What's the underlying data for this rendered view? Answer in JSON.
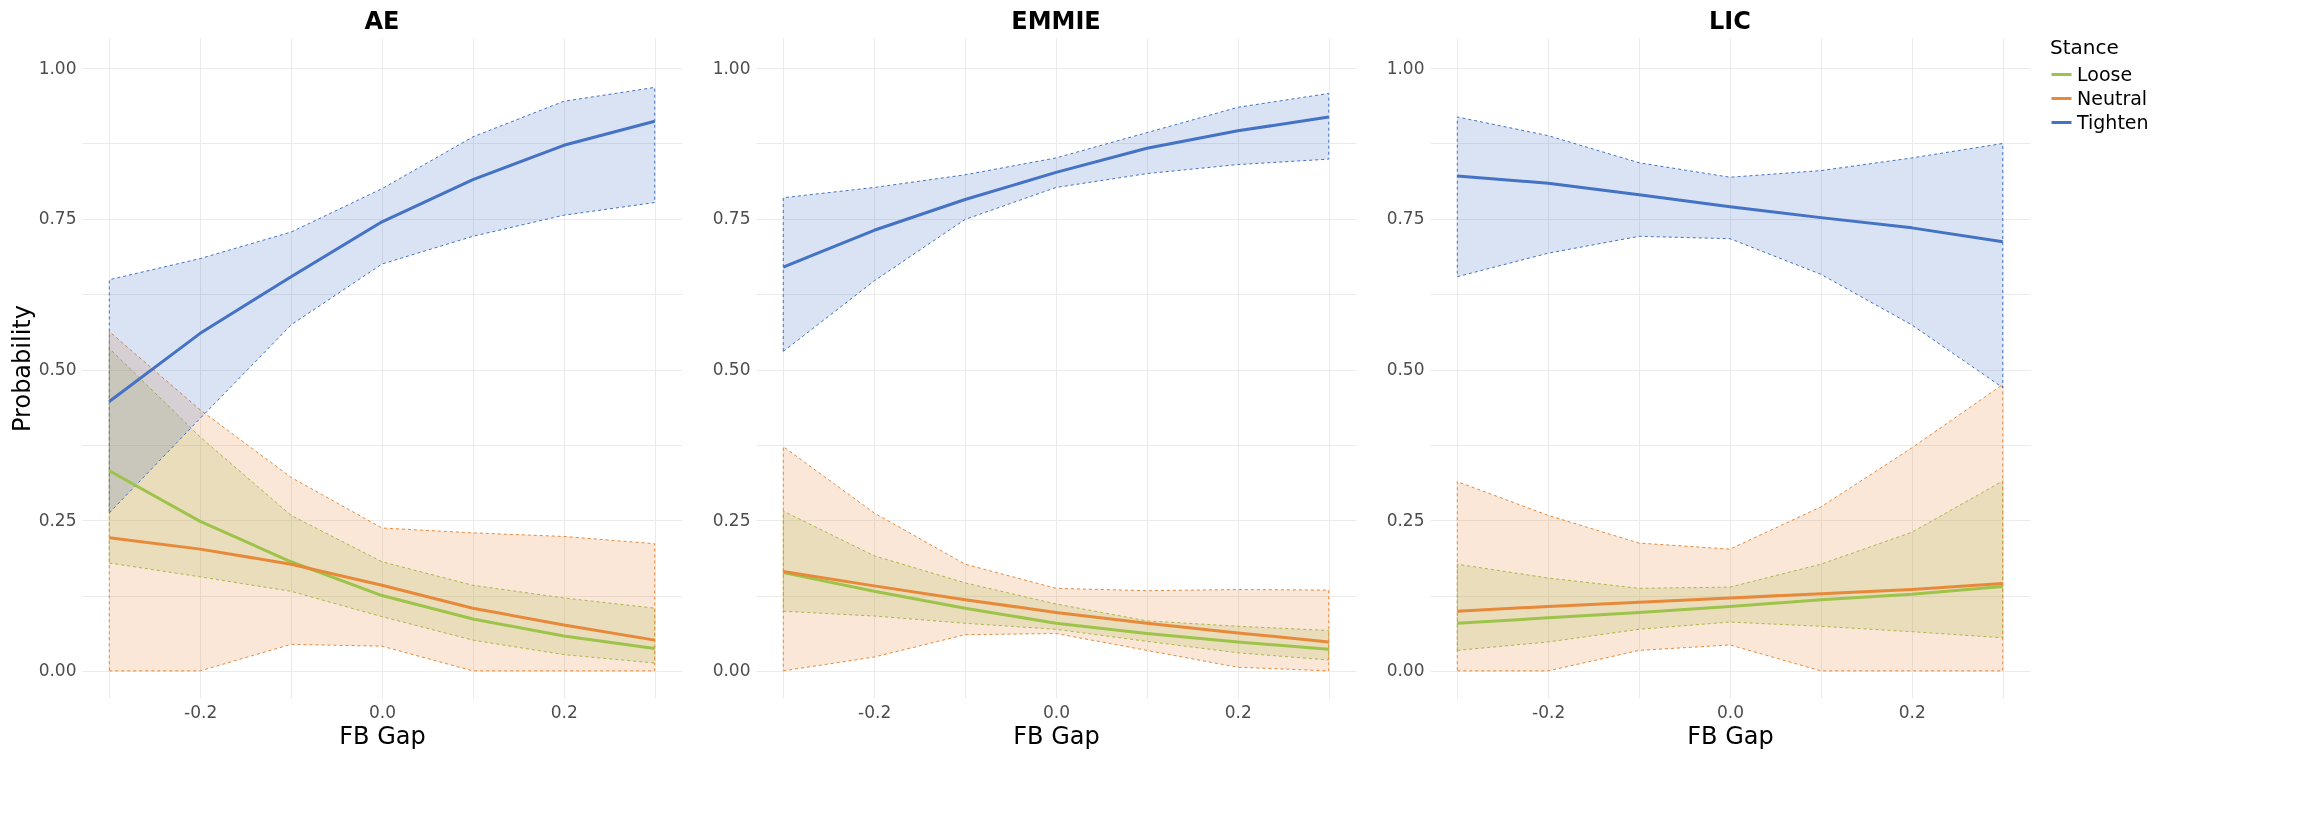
{
  "chart_data": [
    {
      "type": "line",
      "title": "AE",
      "xlabel": "FB Gap",
      "ylabel": "Probability",
      "legend": "right",
      "grid": true,
      "line_style": "solid",
      "x": [
        -0.3,
        -0.2,
        -0.1,
        0,
        0.1,
        0.2,
        0.3
      ],
      "xlim": [
        -0.33,
        0.33
      ],
      "xticks": [
        {
          "value": -0.3,
          "label": null
        },
        {
          "value": -0.2,
          "label": "-0.2"
        },
        {
          "value": -0.1,
          "label": null
        },
        {
          "value": 0,
          "label": "0.0"
        },
        {
          "value": 0.1,
          "label": null
        },
        {
          "value": 0.2,
          "label": "0.2"
        },
        {
          "value": 0.3,
          "label": null
        }
      ],
      "ylim": [
        -0.045,
        1.05
      ],
      "yticks": [
        {
          "value": 0,
          "label": "0.00"
        },
        {
          "value": 0.125,
          "label": null
        },
        {
          "value": 0.25,
          "label": "0.25"
        },
        {
          "value": 0.375,
          "label": null
        },
        {
          "value": 0.5,
          "label": "0.50"
        },
        {
          "value": 0.625,
          "label": null
        },
        {
          "value": 0.75,
          "label": "0.75"
        },
        {
          "value": 0.875,
          "label": null
        },
        {
          "value": 1,
          "label": "1.00"
        }
      ],
      "series": [
        {
          "name": "Loose",
          "color": "#9dc34a",
          "values": [
            0.332,
            0.248,
            0.181,
            0.125,
            0.086,
            0.058,
            0.037
          ],
          "lower": [
            0.179,
            0.156,
            0.132,
            0.09,
            0.051,
            0.027,
            0.013
          ],
          "upper": [
            0.535,
            0.388,
            0.258,
            0.181,
            0.142,
            0.121,
            0.104
          ]
        },
        {
          "name": "Neutral",
          "color": "#e8893a",
          "values": [
            0.221,
            0.202,
            0.177,
            0.142,
            0.104,
            0.076,
            0.051
          ],
          "lower": [
            0,
            0,
            0.044,
            0.041,
            0,
            0,
            0
          ],
          "upper": [
            0.563,
            0.433,
            0.321,
            0.237,
            0.229,
            0.223,
            0.211
          ]
        },
        {
          "name": "Tighten",
          "color": "#4472c4",
          "values": [
            0.447,
            0.56,
            0.654,
            0.745,
            0.815,
            0.872,
            0.912
          ],
          "lower": [
            0.262,
            0.419,
            0.574,
            0.675,
            0.721,
            0.756,
            0.777
          ],
          "upper": [
            0.649,
            0.684,
            0.728,
            0.8,
            0.886,
            0.945,
            0.968
          ]
        }
      ]
    },
    {
      "type": "line",
      "title": "EMMIE",
      "xlabel": "FB Gap",
      "legend": "right",
      "grid": true,
      "line_style": "solid",
      "x": [
        -0.3,
        -0.2,
        -0.1,
        0,
        0.1,
        0.2,
        0.3
      ],
      "xlim": [
        -0.33,
        0.33
      ],
      "xticks": [
        {
          "value": -0.3,
          "label": null
        },
        {
          "value": -0.2,
          "label": "-0.2"
        },
        {
          "value": -0.1,
          "label": null
        },
        {
          "value": 0,
          "label": "0.0"
        },
        {
          "value": 0.1,
          "label": null
        },
        {
          "value": 0.2,
          "label": "0.2"
        },
        {
          "value": 0.3,
          "label": null
        }
      ],
      "ylim": [
        -0.045,
        1.05
      ],
      "yticks": [
        {
          "value": 0,
          "label": "0.00"
        },
        {
          "value": 0.125,
          "label": null
        },
        {
          "value": 0.25,
          "label": "0.25"
        },
        {
          "value": 0.375,
          "label": null
        },
        {
          "value": 0.5,
          "label": "0.50"
        },
        {
          "value": 0.625,
          "label": null
        },
        {
          "value": 0.75,
          "label": "0.75"
        },
        {
          "value": 0.875,
          "label": null
        },
        {
          "value": 1,
          "label": "1.00"
        }
      ],
      "series": [
        {
          "name": "Loose",
          "color": "#9dc34a",
          "values": [
            0.163,
            0.132,
            0.104,
            0.079,
            0.062,
            0.048,
            0.036
          ],
          "lower": [
            0.099,
            0.091,
            0.079,
            0.069,
            0.049,
            0.03,
            0.018
          ],
          "upper": [
            0.265,
            0.191,
            0.146,
            0.111,
            0.083,
            0.074,
            0.067
          ]
        },
        {
          "name": "Neutral",
          "color": "#e8893a",
          "values": [
            0.165,
            0.141,
            0.118,
            0.097,
            0.079,
            0.063,
            0.048
          ],
          "lower": [
            0,
            0.023,
            0.06,
            0.062,
            0.034,
            0.006,
            0
          ],
          "upper": [
            0.372,
            0.262,
            0.177,
            0.137,
            0.133,
            0.135,
            0.134
          ]
        },
        {
          "name": "Tighten",
          "color": "#4472c4",
          "values": [
            0.67,
            0.731,
            0.782,
            0.827,
            0.867,
            0.896,
            0.919
          ],
          "lower": [
            0.53,
            0.647,
            0.749,
            0.802,
            0.825,
            0.84,
            0.849
          ],
          "upper": [
            0.785,
            0.802,
            0.823,
            0.851,
            0.893,
            0.935,
            0.958
          ]
        }
      ]
    },
    {
      "type": "line",
      "title": "LIC",
      "xlabel": "FB Gap",
      "legend_title": "Stance",
      "legend": "right",
      "grid": true,
      "line_style": "solid",
      "x": [
        -0.3,
        -0.2,
        -0.1,
        0,
        0.1,
        0.2,
        0.3
      ],
      "xlim": [
        -0.33,
        0.33
      ],
      "xticks": [
        {
          "value": -0.3,
          "label": null
        },
        {
          "value": -0.2,
          "label": "-0.2"
        },
        {
          "value": -0.1,
          "label": null
        },
        {
          "value": 0,
          "label": "0.0"
        },
        {
          "value": 0.1,
          "label": null
        },
        {
          "value": 0.2,
          "label": "0.2"
        },
        {
          "value": 0.3,
          "label": null
        }
      ],
      "ylim": [
        -0.045,
        1.05
      ],
      "yticks": [
        {
          "value": 0,
          "label": "0.00"
        },
        {
          "value": 0.125,
          "label": null
        },
        {
          "value": 0.25,
          "label": "0.25"
        },
        {
          "value": 0.375,
          "label": null
        },
        {
          "value": 0.5,
          "label": "0.50"
        },
        {
          "value": 0.625,
          "label": null
        },
        {
          "value": 0.75,
          "label": "0.75"
        },
        {
          "value": 0.875,
          "label": null
        },
        {
          "value": 1,
          "label": "1.00"
        }
      ],
      "series": [
        {
          "name": "Loose",
          "color": "#9dc34a",
          "values": [
            0.079,
            0.088,
            0.097,
            0.107,
            0.118,
            0.127,
            0.14
          ],
          "lower": [
            0.034,
            0.048,
            0.069,
            0.081,
            0.074,
            0.065,
            0.055
          ],
          "upper": [
            0.177,
            0.154,
            0.137,
            0.139,
            0.177,
            0.23,
            0.315
          ]
        },
        {
          "name": "Neutral",
          "color": "#e8893a",
          "values": [
            0.099,
            0.107,
            0.114,
            0.121,
            0.128,
            0.135,
            0.145
          ],
          "lower": [
            0,
            0,
            0.034,
            0.043,
            0,
            0,
            0
          ],
          "upper": [
            0.314,
            0.258,
            0.212,
            0.202,
            0.272,
            0.37,
            0.475
          ]
        },
        {
          "name": "Tighten",
          "color": "#4472c4",
          "values": [
            0.821,
            0.809,
            0.79,
            0.77,
            0.752,
            0.735,
            0.712
          ],
          "lower": [
            0.654,
            0.693,
            0.721,
            0.717,
            0.658,
            0.574,
            0.47
          ],
          "upper": [
            0.919,
            0.888,
            0.843,
            0.819,
            0.83,
            0.851,
            0.875
          ]
        }
      ]
    }
  ]
}
